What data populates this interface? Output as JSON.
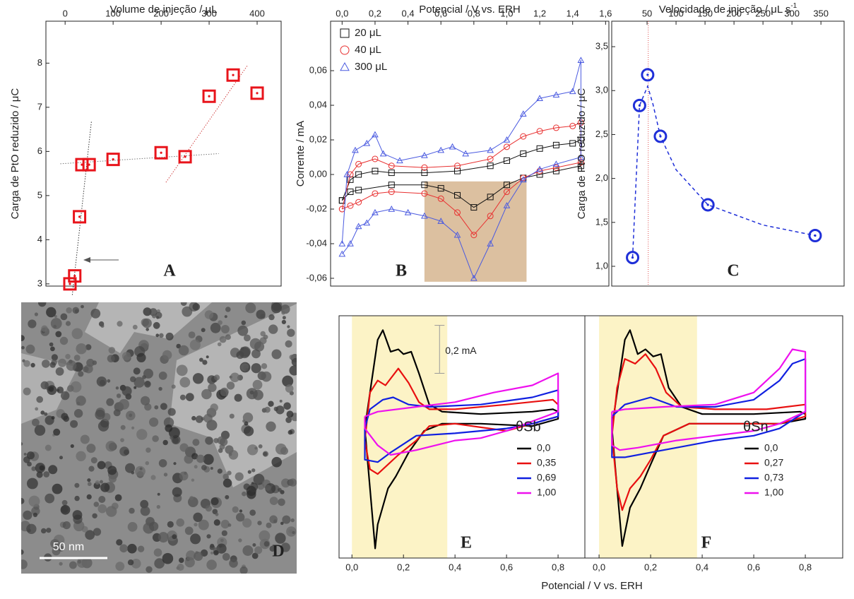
{
  "chart_data": [
    {
      "type": "scatter",
      "panel_letter": "A",
      "xlabel": "Volume de injeção / μL",
      "ylabel": "Carga de PtO reduzido / μC",
      "x": [
        10,
        20,
        30,
        35,
        50,
        100,
        200,
        250,
        300,
        350,
        400
      ],
      "values": [
        3.0,
        3.18,
        4.52,
        5.7,
        5.7,
        5.82,
        5.97,
        5.88,
        7.25,
        7.73,
        7.32
      ],
      "color": "#e8141b",
      "marker": "square",
      "marker_dot": true,
      "xlim": [
        -40,
        450
      ],
      "ylim": [
        2.95,
        8.95
      ],
      "xticks": [
        0,
        100,
        200,
        300,
        400
      ],
      "yticks": [
        3,
        4,
        5,
        6,
        7,
        8
      ],
      "fit_lines": [
        {
          "x": [
            15,
            55
          ],
          "y": [
            2.75,
            6.7
          ],
          "color": "#333333"
        },
        {
          "x": [
            -10,
            320
          ],
          "y": [
            5.72,
            5.95
          ],
          "color": "#777777"
        },
        {
          "x": [
            210,
            380
          ],
          "y": [
            5.3,
            7.95
          ],
          "color": "#d04040"
        }
      ]
    },
    {
      "type": "line",
      "panel_letter": "B",
      "xlabel": "Potencial / V vs. ERH",
      "ylabel": "Corrente / mA",
      "markers": true,
      "xlim": [
        -0.07,
        1.62
      ],
      "ylim": [
        -0.0645,
        0.0886
      ],
      "xticks": [
        {
          "value": 0.0,
          "label": "0,0"
        },
        {
          "value": 0.2,
          "label": "0,2"
        },
        {
          "value": 0.4,
          "label": "0,4"
        },
        {
          "value": 0.6,
          "label": "0,6"
        },
        {
          "value": 0.8,
          "label": "0,8"
        },
        {
          "value": 1.0,
          "label": "1,0"
        },
        {
          "value": 1.2,
          "label": "1,2"
        },
        {
          "value": 1.4,
          "label": "1,4"
        },
        {
          "value": 1.6,
          "label": "1,6"
        }
      ],
      "yticks": [
        {
          "value": -0.06,
          "label": "-0,06"
        },
        {
          "value": -0.04,
          "label": "-0,04"
        },
        {
          "value": -0.02,
          "label": "-0,02"
        },
        {
          "value": 0.0,
          "label": "0,00"
        },
        {
          "value": 0.02,
          "label": "0,02"
        },
        {
          "value": 0.04,
          "label": "0,04"
        },
        {
          "value": 0.06,
          "label": "0,06"
        }
      ],
      "highlight": {
        "x": [
          0.5,
          1.12
        ],
        "y": [
          -0.062,
          -0.004
        ],
        "color": "#dcc0a0"
      },
      "series": [
        {
          "name": "20 μL",
          "color": "#111111",
          "marker": "square",
          "x": [
            0.0,
            0.05,
            0.1,
            0.2,
            0.3,
            0.5,
            0.7,
            0.9,
            1.0,
            1.1,
            1.2,
            1.3,
            1.4,
            1.45,
            1.45,
            1.3,
            1.2,
            1.1,
            1.0,
            0.9,
            0.8,
            0.7,
            0.6,
            0.5,
            0.3,
            0.1,
            0.05,
            0.0
          ],
          "values": [
            -0.015,
            -0.003,
            0.0,
            0.002,
            0.001,
            0.001,
            0.002,
            0.005,
            0.008,
            0.012,
            0.015,
            0.017,
            0.018,
            0.02,
            0.005,
            0.002,
            0.0,
            -0.002,
            -0.006,
            -0.013,
            -0.019,
            -0.012,
            -0.008,
            -0.006,
            -0.006,
            -0.009,
            -0.01,
            -0.015
          ]
        },
        {
          "name": "40 μL",
          "color": "#e83030",
          "marker": "circle",
          "x": [
            0.0,
            0.05,
            0.1,
            0.2,
            0.3,
            0.5,
            0.7,
            0.9,
            1.0,
            1.1,
            1.2,
            1.3,
            1.4,
            1.45,
            1.45,
            1.3,
            1.2,
            1.1,
            1.0,
            0.9,
            0.8,
            0.7,
            0.6,
            0.5,
            0.3,
            0.2,
            0.1,
            0.05,
            0.0
          ],
          "values": [
            -0.02,
            0.0,
            0.006,
            0.009,
            0.005,
            0.004,
            0.005,
            0.009,
            0.016,
            0.022,
            0.025,
            0.027,
            0.028,
            0.03,
            0.007,
            0.004,
            0.002,
            -0.002,
            -0.01,
            -0.024,
            -0.035,
            -0.022,
            -0.014,
            -0.011,
            -0.01,
            -0.011,
            -0.016,
            -0.018,
            -0.02
          ]
        },
        {
          "name": "300 μL",
          "color": "#4a5ae0",
          "marker": "triangle",
          "x": [
            0.0,
            0.03,
            0.08,
            0.15,
            0.2,
            0.25,
            0.35,
            0.5,
            0.6,
            0.67,
            0.75,
            0.9,
            1.0,
            1.1,
            1.2,
            1.3,
            1.4,
            1.45,
            1.45,
            1.3,
            1.2,
            1.1,
            1.0,
            0.9,
            0.8,
            0.7,
            0.6,
            0.5,
            0.4,
            0.3,
            0.2,
            0.15,
            0.1,
            0.05,
            0.0
          ],
          "values": [
            -0.04,
            0.0,
            0.014,
            0.018,
            0.023,
            0.012,
            0.008,
            0.011,
            0.014,
            0.016,
            0.012,
            0.014,
            0.02,
            0.035,
            0.044,
            0.046,
            0.048,
            0.066,
            0.01,
            0.006,
            0.003,
            -0.003,
            -0.018,
            -0.04,
            -0.06,
            -0.035,
            -0.027,
            -0.024,
            -0.022,
            -0.02,
            -0.022,
            -0.028,
            -0.03,
            -0.04,
            -0.046
          ]
        }
      ]
    },
    {
      "type": "scatter",
      "panel_letter": "C",
      "xlabel": "Velocidade de injeção / μL s",
      "xlabel_sup": "-1",
      "ylabel": "Carga de PtO reduzido / μC",
      "x": [
        25,
        37,
        51,
        73,
        155,
        340
      ],
      "values": [
        1.1,
        2.83,
        3.18,
        2.48,
        1.7,
        1.35
      ],
      "color": "#1f2fd8",
      "marker": "circle",
      "marker_dot": true,
      "xlim": [
        -11,
        390
      ],
      "ylim": [
        0.775,
        3.79
      ],
      "xticks": [
        50,
        100,
        150,
        200,
        250,
        300,
        350
      ],
      "yticks": [
        {
          "value": 1.0,
          "label": "1,0"
        },
        {
          "value": 1.5,
          "label": "1,5"
        },
        {
          "value": 2.0,
          "label": "2,0"
        },
        {
          "value": 2.5,
          "label": "2,5"
        },
        {
          "value": 3.0,
          "label": "3,0"
        },
        {
          "value": 3.5,
          "label": "3,5"
        }
      ],
      "fit_lines": [
        {
          "x": [
            25,
            37,
            51,
            60,
            73,
            100,
            155,
            250,
            340
          ],
          "y": [
            1.1,
            2.83,
            3.05,
            2.85,
            2.48,
            2.1,
            1.7,
            1.47,
            1.35
          ],
          "color": "#1f2fd8"
        }
      ],
      "vline": 52,
      "vline_color": "#e05050"
    },
    {
      "type": "image",
      "panel_letter": "D",
      "scale_bar": "50 nm"
    },
    {
      "type": "line",
      "panel_letter": "E",
      "legend_title": "θSb",
      "scale_bar": {
        "label": "0,2 mA",
        "value": 0.2
      },
      "xlim": [
        -0.05,
        0.904
      ],
      "ylim": [
        -0.59,
        0.42
      ],
      "xticks": [
        {
          "value": 0.0,
          "label": "0,0"
        },
        {
          "value": 0.2,
          "label": "0,2"
        },
        {
          "value": 0.4,
          "label": "0,4"
        },
        {
          "value": 0.6,
          "label": "0,6"
        },
        {
          "value": 0.8,
          "label": "0,8"
        }
      ],
      "highlight": {
        "x": [
          0.0,
          0.37
        ],
        "color": "#fcf3c6"
      },
      "series": [
        {
          "name": "0,0",
          "color": "#000000",
          "x": [
            0.05,
            0.07,
            0.1,
            0.12,
            0.15,
            0.18,
            0.2,
            0.23,
            0.26,
            0.3,
            0.35,
            0.5,
            0.7,
            0.78,
            0.8,
            0.8,
            0.7,
            0.5,
            0.35,
            0.28,
            0.22,
            0.17,
            0.14,
            0.1,
            0.09,
            0.07,
            0.05
          ],
          "values": [
            -0.05,
            0.1,
            0.32,
            0.36,
            0.27,
            0.28,
            0.26,
            0.27,
            0.18,
            0.05,
            0.02,
            0.01,
            0.02,
            0.03,
            0.02,
            -0.01,
            -0.04,
            -0.03,
            -0.03,
            -0.06,
            -0.15,
            -0.25,
            -0.3,
            -0.45,
            -0.55,
            -0.3,
            -0.05
          ]
        },
        {
          "name": "0,35",
          "color": "#e81010",
          "x": [
            0.05,
            0.07,
            0.1,
            0.13,
            0.18,
            0.22,
            0.26,
            0.3,
            0.4,
            0.6,
            0.78,
            0.8,
            0.8,
            0.7,
            0.6,
            0.4,
            0.3,
            0.25,
            0.18,
            0.14,
            0.1,
            0.07,
            0.05
          ],
          "values": [
            -0.1,
            0.1,
            0.15,
            0.13,
            0.2,
            0.14,
            0.06,
            0.03,
            0.03,
            0.05,
            0.07,
            0.05,
            0.0,
            -0.03,
            -0.06,
            -0.03,
            -0.04,
            -0.1,
            -0.16,
            -0.2,
            -0.24,
            -0.22,
            -0.1
          ]
        },
        {
          "name": "0,69",
          "color": "#1020e0",
          "x": [
            0.05,
            0.07,
            0.12,
            0.16,
            0.22,
            0.3,
            0.5,
            0.7,
            0.8,
            0.8,
            0.7,
            0.6,
            0.4,
            0.25,
            0.15,
            0.1,
            0.05,
            0.05
          ],
          "values": [
            -0.05,
            0.03,
            0.07,
            0.08,
            0.05,
            0.04,
            0.05,
            0.08,
            0.11,
            0.0,
            -0.03,
            -0.05,
            -0.07,
            -0.08,
            -0.15,
            -0.19,
            -0.18,
            -0.05
          ]
        },
        {
          "name": "1,00",
          "color": "#ee10ee",
          "x": [
            0.05,
            0.1,
            0.25,
            0.4,
            0.55,
            0.7,
            0.8,
            0.8,
            0.7,
            0.6,
            0.5,
            0.4,
            0.25,
            0.15,
            0.1,
            0.05,
            0.05
          ],
          "values": [
            0.0,
            0.02,
            0.04,
            0.06,
            0.1,
            0.13,
            0.18,
            0.02,
            -0.02,
            -0.06,
            -0.09,
            -0.1,
            -0.14,
            -0.16,
            -0.12,
            -0.05,
            0.0
          ]
        }
      ]
    },
    {
      "type": "line",
      "panel_letter": "F",
      "legend_title": "θSn",
      "xlim": [
        -0.055,
        0.945
      ],
      "ylim": [
        -0.59,
        0.42
      ],
      "xticks": [
        {
          "value": 0.0,
          "label": "0,0"
        },
        {
          "value": 0.2,
          "label": "0,2"
        },
        {
          "value": 0.4,
          "label": "0,4"
        },
        {
          "value": 0.6,
          "label": "0,6"
        },
        {
          "value": 0.8,
          "label": "0,8"
        }
      ],
      "highlight": {
        "x": [
          0.0,
          0.38
        ],
        "color": "#fcf3c6"
      },
      "series": [
        {
          "name": "0,0",
          "color": "#000000",
          "x": [
            0.05,
            0.07,
            0.1,
            0.12,
            0.15,
            0.18,
            0.21,
            0.24,
            0.27,
            0.32,
            0.4,
            0.6,
            0.78,
            0.8,
            0.8,
            0.7,
            0.5,
            0.35,
            0.25,
            0.2,
            0.16,
            0.12,
            0.09,
            0.07,
            0.05
          ],
          "values": [
            -0.05,
            0.1,
            0.32,
            0.36,
            0.26,
            0.28,
            0.25,
            0.26,
            0.12,
            0.04,
            0.01,
            0.01,
            0.02,
            0.01,
            -0.01,
            -0.03,
            -0.03,
            -0.03,
            -0.08,
            -0.2,
            -0.3,
            -0.38,
            -0.54,
            -0.3,
            -0.05
          ]
        },
        {
          "name": "0,27",
          "color": "#e81010",
          "x": [
            0.05,
            0.07,
            0.1,
            0.14,
            0.18,
            0.22,
            0.26,
            0.32,
            0.45,
            0.65,
            0.8,
            0.8,
            0.7,
            0.5,
            0.35,
            0.25,
            0.2,
            0.16,
            0.12,
            0.09,
            0.07,
            0.05
          ],
          "values": [
            -0.08,
            0.12,
            0.24,
            0.22,
            0.26,
            0.2,
            0.1,
            0.04,
            0.03,
            0.03,
            0.05,
            0.0,
            -0.03,
            -0.03,
            -0.03,
            -0.08,
            -0.18,
            -0.25,
            -0.3,
            -0.39,
            -0.3,
            -0.08
          ]
        },
        {
          "name": "0,73",
          "color": "#1020e0",
          "x": [
            0.05,
            0.1,
            0.2,
            0.3,
            0.45,
            0.6,
            0.7,
            0.75,
            0.8,
            0.8,
            0.7,
            0.6,
            0.45,
            0.3,
            0.2,
            0.1,
            0.05,
            0.05
          ],
          "values": [
            0.0,
            0.05,
            0.08,
            0.04,
            0.04,
            0.07,
            0.15,
            0.22,
            0.24,
            0.02,
            -0.05,
            -0.08,
            -0.1,
            -0.13,
            -0.15,
            -0.17,
            -0.17,
            0.0
          ]
        },
        {
          "name": "1,00",
          "color": "#ee10ee",
          "x": [
            0.05,
            0.1,
            0.25,
            0.45,
            0.6,
            0.7,
            0.75,
            0.8,
            0.8,
            0.7,
            0.6,
            0.45,
            0.3,
            0.15,
            0.08,
            0.05,
            0.05
          ],
          "values": [
            0.02,
            0.03,
            0.04,
            0.05,
            0.1,
            0.2,
            0.28,
            0.27,
            0.02,
            -0.03,
            -0.06,
            -0.08,
            -0.1,
            -0.13,
            -0.14,
            -0.12,
            0.02
          ]
        }
      ]
    }
  ],
  "xlabel_EF": "Potencial / V vs. ERH"
}
